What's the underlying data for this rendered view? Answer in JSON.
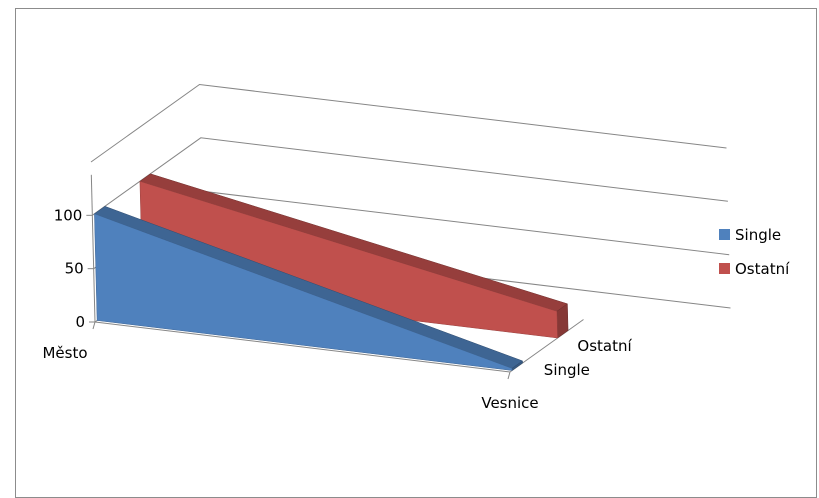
{
  "chart_data": {
    "type": "area",
    "view": "3d",
    "categories": [
      "Město",
      "Vesnice"
    ],
    "series": [
      {
        "name": "Single",
        "values": [
          100,
          2
        ],
        "color": "#4f81bd"
      },
      {
        "name": "Ostatní",
        "values": [
          100,
          25
        ],
        "color": "#c0504d"
      }
    ],
    "yticks": [
      0,
      50,
      100
    ],
    "ylim": [
      0,
      150
    ],
    "depth_labels": [
      "Single",
      "Ostatní"
    ],
    "legend_position": "right",
    "grid": true
  }
}
